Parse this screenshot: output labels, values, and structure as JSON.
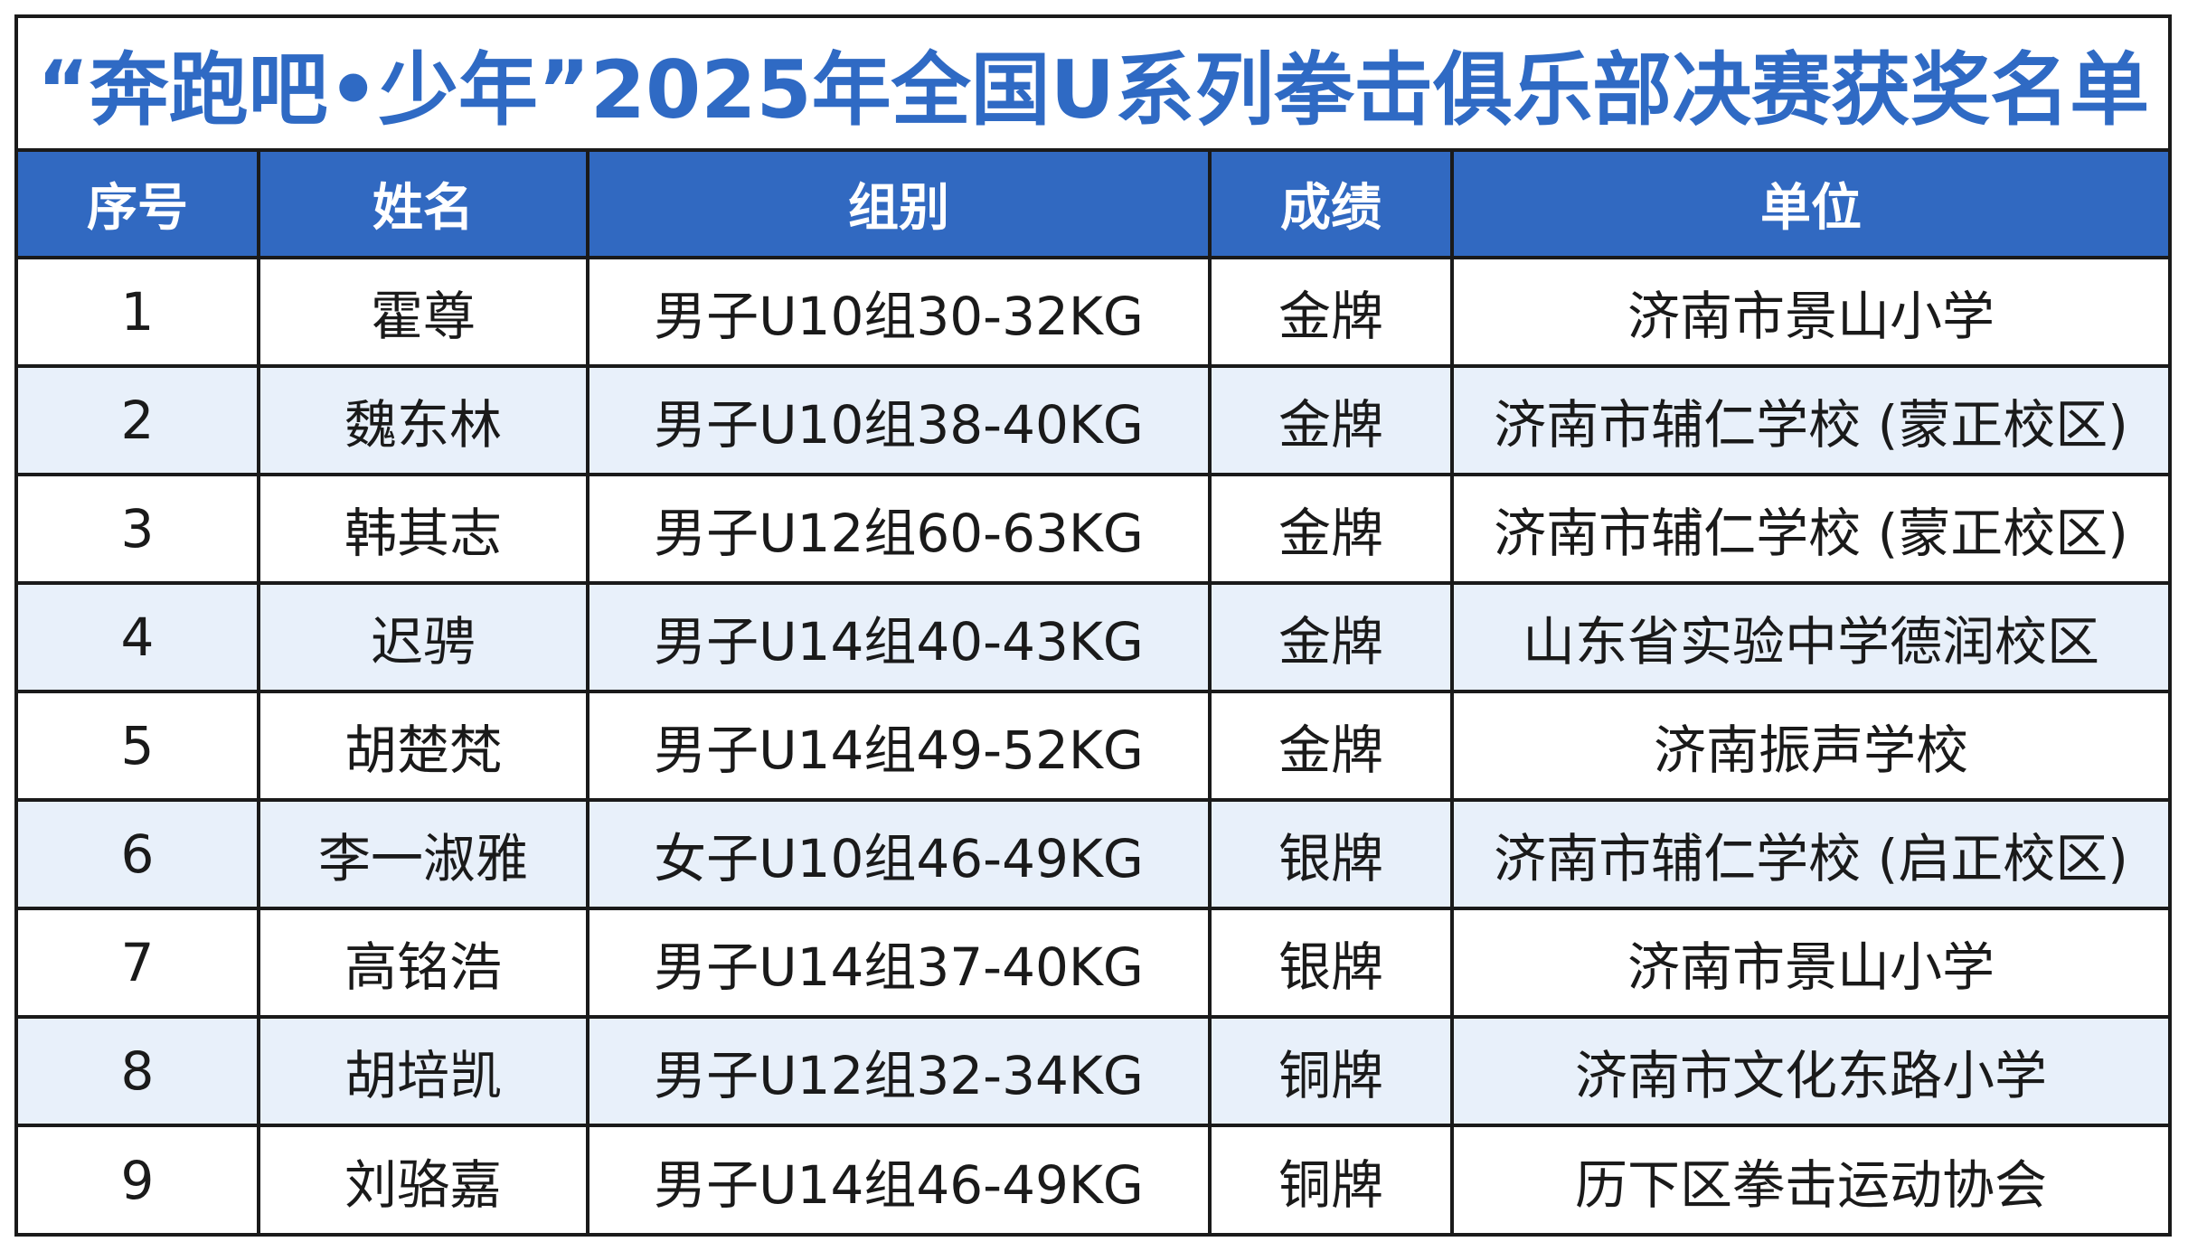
{
  "title": "“奔跑吧•少年”2025年全国U系列拳击俱乐部决赛获奖名单",
  "colors": {
    "title_text": "#2f6ac4",
    "header_bg": "#3169c1",
    "header_text": "#ffffff",
    "alt_row_bg": "#e8f0fa",
    "border": "#1a1a1a"
  },
  "table": {
    "headers": [
      "序号",
      "姓名",
      "组别",
      "成绩",
      "单位"
    ],
    "rows": [
      [
        "1",
        "霍尊",
        "男子U10组30-32KG",
        "金牌",
        "济南市景山小学"
      ],
      [
        "2",
        "魏东林",
        "男子U10组38-40KG",
        "金牌",
        "济南市辅仁学校 (蒙正校区)"
      ],
      [
        "3",
        "韩其志",
        "男子U12组60-63KG",
        "金牌",
        "济南市辅仁学校 (蒙正校区)"
      ],
      [
        "4",
        "迟骋",
        "男子U14组40-43KG",
        "金牌",
        "山东省实验中学德润校区"
      ],
      [
        "5",
        "胡楚梵",
        "男子U14组49-52KG",
        "金牌",
        "济南振声学校"
      ],
      [
        "6",
        "李一淑雅",
        "女子U10组46-49KG",
        "银牌",
        "济南市辅仁学校 (启正校区)"
      ],
      [
        "7",
        "高铭浩",
        "男子U14组37-40KG",
        "银牌",
        "济南市景山小学"
      ],
      [
        "8",
        "胡培凯",
        "男子U12组32-34KG",
        "铜牌",
        "济南市文化东路小学"
      ],
      [
        "9",
        "刘骆嘉",
        "男子U14组46-49KG",
        "铜牌",
        "历下区拳击运动协会"
      ]
    ]
  }
}
